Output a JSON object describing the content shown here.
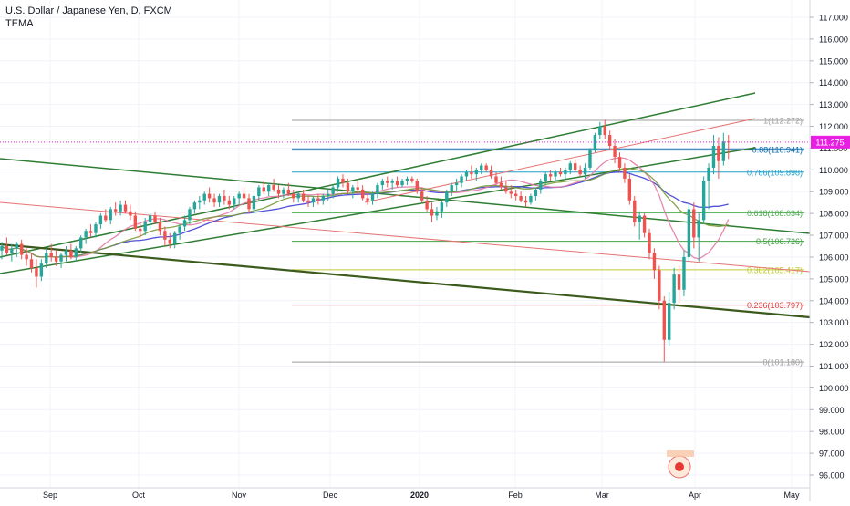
{
  "header": {
    "title": "U.S. Dollar / Japanese Yen, D, FXCM",
    "indicator": "TEMA"
  },
  "colors": {
    "bull": "#26a69a",
    "bear": "#ef5350",
    "grid": "#f0f3fa",
    "axis_text": "#131722",
    "price_tag": "#e91ee3",
    "channel": "#2e7d32",
    "ma_blue": "#3f3fd4",
    "ma_pink": "#e27ba6",
    "ma_olive": "#7a9a3a"
  },
  "chart_data": {
    "type": "candlestick",
    "title": "U.S. Dollar / Japanese Yen, D, FXCM",
    "indicator": "TEMA",
    "x_labels": [
      "Sep",
      "Oct",
      "Nov",
      "Dec",
      "2020",
      "Feb",
      "Mar",
      "Apr",
      "May"
    ],
    "y_ticks": [
      "96.000",
      "97.000",
      "98.000",
      "99.000",
      "100.000",
      "101.000",
      "102.000",
      "103.000",
      "104.000",
      "105.000",
      "106.000",
      "107.000",
      "108.000",
      "109.000",
      "110.000",
      "111.000",
      "112.000",
      "113.000",
      "114.000",
      "115.000",
      "116.000",
      "117.000"
    ],
    "ylim": [
      95.5,
      117.5
    ],
    "last_price": "111.275",
    "fib_levels": [
      {
        "label": "1(112.272)",
        "value": 112.272,
        "color": "#9e9e9e"
      },
      {
        "label": "0.88(110.941)",
        "value": 110.941,
        "color": "#0b6aa8"
      },
      {
        "label": "0.786(109.898)",
        "value": 109.898,
        "color": "#1f9fc9"
      },
      {
        "label": "0.618(108.034)",
        "value": 108.034,
        "color": "#4caf50"
      },
      {
        "label": "0.5(106.726)",
        "value": 106.726,
        "color": "#43a047"
      },
      {
        "label": "0.382(105.417)",
        "value": 105.417,
        "color": "#c0ca33"
      },
      {
        "label": "0.236(103.797)",
        "value": 103.797,
        "color": "#e53935"
      },
      {
        "label": "0(101.180)",
        "value": 101.18,
        "color": "#9e9e9e"
      }
    ],
    "candles": [
      {
        "o": 106.3,
        "h": 106.7,
        "l": 105.9,
        "c": 106.5
      },
      {
        "o": 106.5,
        "h": 106.9,
        "l": 106.1,
        "c": 106.2
      },
      {
        "o": 106.2,
        "h": 106.6,
        "l": 105.8,
        "c": 106.4
      },
      {
        "o": 106.4,
        "h": 106.7,
        "l": 106.0,
        "c": 106.6
      },
      {
        "o": 106.6,
        "h": 106.8,
        "l": 105.9,
        "c": 106.1
      },
      {
        "o": 106.1,
        "h": 106.4,
        "l": 105.6,
        "c": 105.9
      },
      {
        "o": 105.9,
        "h": 106.2,
        "l": 105.3,
        "c": 105.5
      },
      {
        "o": 105.5,
        "h": 105.9,
        "l": 104.6,
        "c": 105.1
      },
      {
        "o": 105.1,
        "h": 105.9,
        "l": 104.9,
        "c": 105.7
      },
      {
        "o": 105.7,
        "h": 106.4,
        "l": 105.5,
        "c": 106.2
      },
      {
        "o": 106.2,
        "h": 106.6,
        "l": 105.8,
        "c": 106.0
      },
      {
        "o": 106.0,
        "h": 106.3,
        "l": 105.6,
        "c": 105.8
      },
      {
        "o": 105.8,
        "h": 106.2,
        "l": 105.5,
        "c": 106.1
      },
      {
        "o": 106.1,
        "h": 106.5,
        "l": 105.8,
        "c": 106.3
      },
      {
        "o": 106.3,
        "h": 106.6,
        "l": 105.9,
        "c": 106.0
      },
      {
        "o": 106.0,
        "h": 106.5,
        "l": 105.8,
        "c": 106.4
      },
      {
        "o": 106.4,
        "h": 107.0,
        "l": 106.2,
        "c": 106.9
      },
      {
        "o": 106.9,
        "h": 107.3,
        "l": 106.6,
        "c": 107.2
      },
      {
        "o": 107.2,
        "h": 107.5,
        "l": 106.9,
        "c": 107.1
      },
      {
        "o": 107.1,
        "h": 107.6,
        "l": 106.9,
        "c": 107.5
      },
      {
        "o": 107.5,
        "h": 108.0,
        "l": 107.3,
        "c": 107.9
      },
      {
        "o": 107.9,
        "h": 108.2,
        "l": 107.6,
        "c": 107.7
      },
      {
        "o": 107.7,
        "h": 108.3,
        "l": 107.5,
        "c": 108.2
      },
      {
        "o": 108.2,
        "h": 108.5,
        "l": 107.9,
        "c": 108.1
      },
      {
        "o": 108.1,
        "h": 108.6,
        "l": 107.9,
        "c": 108.4
      },
      {
        "o": 108.4,
        "h": 108.6,
        "l": 108.0,
        "c": 108.1
      },
      {
        "o": 108.1,
        "h": 108.4,
        "l": 107.7,
        "c": 107.9
      },
      {
        "o": 107.9,
        "h": 108.1,
        "l": 107.2,
        "c": 107.3
      },
      {
        "o": 107.3,
        "h": 107.6,
        "l": 106.9,
        "c": 107.2
      },
      {
        "o": 107.2,
        "h": 107.8,
        "l": 107.0,
        "c": 107.6
      },
      {
        "o": 107.6,
        "h": 108.0,
        "l": 107.3,
        "c": 107.9
      },
      {
        "o": 107.9,
        "h": 108.1,
        "l": 107.5,
        "c": 107.6
      },
      {
        "o": 107.6,
        "h": 107.8,
        "l": 107.0,
        "c": 107.2
      },
      {
        "o": 107.2,
        "h": 107.4,
        "l": 106.5,
        "c": 106.8
      },
      {
        "o": 106.8,
        "h": 107.1,
        "l": 106.4,
        "c": 106.6
      },
      {
        "o": 106.6,
        "h": 107.2,
        "l": 106.4,
        "c": 107.1
      },
      {
        "o": 107.1,
        "h": 107.5,
        "l": 106.8,
        "c": 107.4
      },
      {
        "o": 107.4,
        "h": 107.9,
        "l": 107.2,
        "c": 107.7
      },
      {
        "o": 107.7,
        "h": 108.3,
        "l": 107.5,
        "c": 108.2
      },
      {
        "o": 108.2,
        "h": 108.6,
        "l": 108.0,
        "c": 108.5
      },
      {
        "o": 108.5,
        "h": 108.8,
        "l": 108.2,
        "c": 108.6
      },
      {
        "o": 108.6,
        "h": 109.0,
        "l": 108.4,
        "c": 108.9
      },
      {
        "o": 108.9,
        "h": 109.2,
        "l": 108.5,
        "c": 108.7
      },
      {
        "o": 108.7,
        "h": 108.9,
        "l": 108.3,
        "c": 108.5
      },
      {
        "o": 108.5,
        "h": 108.9,
        "l": 108.3,
        "c": 108.8
      },
      {
        "o": 108.8,
        "h": 109.1,
        "l": 108.4,
        "c": 108.6
      },
      {
        "o": 108.6,
        "h": 108.8,
        "l": 108.2,
        "c": 108.4
      },
      {
        "o": 108.4,
        "h": 108.8,
        "l": 108.2,
        "c": 108.7
      },
      {
        "o": 108.7,
        "h": 109.0,
        "l": 108.4,
        "c": 108.9
      },
      {
        "o": 108.9,
        "h": 109.2,
        "l": 108.6,
        "c": 108.7
      },
      {
        "o": 108.7,
        "h": 108.9,
        "l": 108.0,
        "c": 108.2
      },
      {
        "o": 108.2,
        "h": 108.9,
        "l": 108.0,
        "c": 108.8
      },
      {
        "o": 108.8,
        "h": 109.3,
        "l": 108.6,
        "c": 109.2
      },
      {
        "o": 109.2,
        "h": 109.5,
        "l": 108.9,
        "c": 109.0
      },
      {
        "o": 109.0,
        "h": 109.4,
        "l": 108.8,
        "c": 109.3
      },
      {
        "o": 109.3,
        "h": 109.6,
        "l": 109.0,
        "c": 109.1
      },
      {
        "o": 109.1,
        "h": 109.3,
        "l": 108.7,
        "c": 108.9
      },
      {
        "o": 108.9,
        "h": 109.2,
        "l": 108.7,
        "c": 109.1
      },
      {
        "o": 109.1,
        "h": 109.4,
        "l": 108.8,
        "c": 108.9
      },
      {
        "o": 108.9,
        "h": 109.1,
        "l": 108.5,
        "c": 108.7
      },
      {
        "o": 108.7,
        "h": 109.0,
        "l": 108.5,
        "c": 108.9
      },
      {
        "o": 108.9,
        "h": 109.1,
        "l": 108.5,
        "c": 108.6
      },
      {
        "o": 108.6,
        "h": 108.8,
        "l": 108.3,
        "c": 108.5
      },
      {
        "o": 108.5,
        "h": 108.8,
        "l": 108.3,
        "c": 108.7
      },
      {
        "o": 108.7,
        "h": 108.9,
        "l": 108.4,
        "c": 108.6
      },
      {
        "o": 108.6,
        "h": 108.9,
        "l": 108.4,
        "c": 108.8
      },
      {
        "o": 108.8,
        "h": 109.1,
        "l": 108.6,
        "c": 108.9
      },
      {
        "o": 108.9,
        "h": 109.3,
        "l": 108.7,
        "c": 109.2
      },
      {
        "o": 109.2,
        "h": 109.7,
        "l": 109.0,
        "c": 109.6
      },
      {
        "o": 109.6,
        "h": 109.8,
        "l": 109.2,
        "c": 109.4
      },
      {
        "o": 109.4,
        "h": 109.6,
        "l": 108.9,
        "c": 109.0
      },
      {
        "o": 109.0,
        "h": 109.3,
        "l": 108.7,
        "c": 109.2
      },
      {
        "o": 109.2,
        "h": 109.5,
        "l": 108.9,
        "c": 109.1
      },
      {
        "o": 109.1,
        "h": 109.3,
        "l": 108.6,
        "c": 108.7
      },
      {
        "o": 108.7,
        "h": 108.9,
        "l": 108.4,
        "c": 108.6
      },
      {
        "o": 108.6,
        "h": 109.0,
        "l": 108.4,
        "c": 108.9
      },
      {
        "o": 108.9,
        "h": 109.4,
        "l": 108.7,
        "c": 109.3
      },
      {
        "o": 109.3,
        "h": 109.6,
        "l": 109.1,
        "c": 109.5
      },
      {
        "o": 109.5,
        "h": 109.7,
        "l": 109.2,
        "c": 109.4
      },
      {
        "o": 109.4,
        "h": 109.6,
        "l": 109.1,
        "c": 109.5
      },
      {
        "o": 109.5,
        "h": 109.7,
        "l": 109.2,
        "c": 109.3
      },
      {
        "o": 109.3,
        "h": 109.6,
        "l": 109.2,
        "c": 109.5
      },
      {
        "o": 109.5,
        "h": 109.7,
        "l": 109.3,
        "c": 109.6
      },
      {
        "o": 109.6,
        "h": 109.7,
        "l": 109.4,
        "c": 109.5
      },
      {
        "o": 109.5,
        "h": 109.6,
        "l": 108.9,
        "c": 109.0
      },
      {
        "o": 109.0,
        "h": 109.2,
        "l": 108.5,
        "c": 108.6
      },
      {
        "o": 108.6,
        "h": 108.8,
        "l": 108.1,
        "c": 108.2
      },
      {
        "o": 108.2,
        "h": 108.5,
        "l": 107.6,
        "c": 107.9
      },
      {
        "o": 107.9,
        "h": 108.3,
        "l": 107.7,
        "c": 108.1
      },
      {
        "o": 108.1,
        "h": 108.6,
        "l": 107.8,
        "c": 108.5
      },
      {
        "o": 108.5,
        "h": 109.1,
        "l": 108.3,
        "c": 109.0
      },
      {
        "o": 109.0,
        "h": 109.4,
        "l": 108.8,
        "c": 109.3
      },
      {
        "o": 109.3,
        "h": 109.6,
        "l": 109.0,
        "c": 109.4
      },
      {
        "o": 109.4,
        "h": 109.8,
        "l": 109.2,
        "c": 109.7
      },
      {
        "o": 109.7,
        "h": 110.0,
        "l": 109.5,
        "c": 109.9
      },
      {
        "o": 109.9,
        "h": 110.2,
        "l": 109.6,
        "c": 109.8
      },
      {
        "o": 109.8,
        "h": 110.1,
        "l": 109.5,
        "c": 110.0
      },
      {
        "o": 110.0,
        "h": 110.3,
        "l": 109.8,
        "c": 110.2
      },
      {
        "o": 110.2,
        "h": 110.3,
        "l": 109.9,
        "c": 110.0
      },
      {
        "o": 110.0,
        "h": 110.2,
        "l": 109.6,
        "c": 109.7
      },
      {
        "o": 109.7,
        "h": 109.9,
        "l": 109.3,
        "c": 109.4
      },
      {
        "o": 109.4,
        "h": 109.7,
        "l": 109.1,
        "c": 109.2
      },
      {
        "o": 109.2,
        "h": 109.5,
        "l": 108.9,
        "c": 109.0
      },
      {
        "o": 109.0,
        "h": 109.3,
        "l": 108.7,
        "c": 108.9
      },
      {
        "o": 108.9,
        "h": 109.1,
        "l": 108.6,
        "c": 108.8
      },
      {
        "o": 108.8,
        "h": 109.0,
        "l": 108.5,
        "c": 108.6
      },
      {
        "o": 108.6,
        "h": 108.8,
        "l": 108.3,
        "c": 108.5
      },
      {
        "o": 108.5,
        "h": 108.9,
        "l": 108.4,
        "c": 108.8
      },
      {
        "o": 108.8,
        "h": 109.2,
        "l": 108.6,
        "c": 109.1
      },
      {
        "o": 109.1,
        "h": 109.6,
        "l": 108.9,
        "c": 109.5
      },
      {
        "o": 109.5,
        "h": 109.9,
        "l": 109.3,
        "c": 109.8
      },
      {
        "o": 109.8,
        "h": 110.0,
        "l": 109.5,
        "c": 109.7
      },
      {
        "o": 109.7,
        "h": 110.0,
        "l": 109.5,
        "c": 109.9
      },
      {
        "o": 109.9,
        "h": 110.1,
        "l": 109.7,
        "c": 109.8
      },
      {
        "o": 109.8,
        "h": 110.1,
        "l": 109.6,
        "c": 110.0
      },
      {
        "o": 110.0,
        "h": 110.4,
        "l": 109.8,
        "c": 110.3
      },
      {
        "o": 110.3,
        "h": 110.5,
        "l": 109.9,
        "c": 110.0
      },
      {
        "o": 110.0,
        "h": 110.2,
        "l": 109.7,
        "c": 109.8
      },
      {
        "o": 109.8,
        "h": 110.3,
        "l": 109.6,
        "c": 110.1
      },
      {
        "o": 110.1,
        "h": 111.0,
        "l": 110.0,
        "c": 110.9
      },
      {
        "o": 110.9,
        "h": 111.7,
        "l": 110.8,
        "c": 111.6
      },
      {
        "o": 111.6,
        "h": 112.2,
        "l": 111.4,
        "c": 112.0
      },
      {
        "o": 112.0,
        "h": 112.3,
        "l": 111.4,
        "c": 111.6
      },
      {
        "o": 111.6,
        "h": 111.8,
        "l": 110.9,
        "c": 111.1
      },
      {
        "o": 111.1,
        "h": 111.4,
        "l": 110.3,
        "c": 110.6
      },
      {
        "o": 110.6,
        "h": 110.8,
        "l": 109.9,
        "c": 110.1
      },
      {
        "o": 110.1,
        "h": 110.3,
        "l": 109.4,
        "c": 109.6
      },
      {
        "o": 109.6,
        "h": 109.8,
        "l": 108.4,
        "c": 108.6
      },
      {
        "o": 108.6,
        "h": 108.8,
        "l": 107.4,
        "c": 107.6
      },
      {
        "o": 107.6,
        "h": 108.1,
        "l": 106.8,
        "c": 107.9
      },
      {
        "o": 107.9,
        "h": 108.0,
        "l": 106.9,
        "c": 107.1
      },
      {
        "o": 107.1,
        "h": 107.3,
        "l": 105.9,
        "c": 106.2
      },
      {
        "o": 106.2,
        "h": 106.4,
        "l": 105.0,
        "c": 105.4
      },
      {
        "o": 105.4,
        "h": 105.6,
        "l": 103.6,
        "c": 104.0
      },
      {
        "o": 104.0,
        "h": 104.2,
        "l": 101.2,
        "c": 102.2
      },
      {
        "o": 102.2,
        "h": 104.4,
        "l": 101.9,
        "c": 103.9
      },
      {
        "o": 103.9,
        "h": 105.5,
        "l": 103.6,
        "c": 105.2
      },
      {
        "o": 105.2,
        "h": 105.6,
        "l": 103.9,
        "c": 104.5
      },
      {
        "o": 104.5,
        "h": 106.3,
        "l": 104.2,
        "c": 106.0
      },
      {
        "o": 106.0,
        "h": 108.4,
        "l": 105.8,
        "c": 108.2
      },
      {
        "o": 108.2,
        "h": 108.5,
        "l": 106.4,
        "c": 106.9
      },
      {
        "o": 106.9,
        "h": 108.0,
        "l": 105.8,
        "c": 107.7
      },
      {
        "o": 107.7,
        "h": 109.7,
        "l": 107.5,
        "c": 109.5
      },
      {
        "o": 109.5,
        "h": 110.3,
        "l": 108.2,
        "c": 110.1
      },
      {
        "o": 110.1,
        "h": 111.6,
        "l": 109.8,
        "c": 111.1
      },
      {
        "o": 111.1,
        "h": 111.5,
        "l": 109.6,
        "c": 110.4
      },
      {
        "o": 110.4,
        "h": 111.7,
        "l": 110.2,
        "c": 111.3
      },
      {
        "o": 111.3,
        "h": 111.6,
        "l": 110.5,
        "c": 111.275
      }
    ]
  }
}
